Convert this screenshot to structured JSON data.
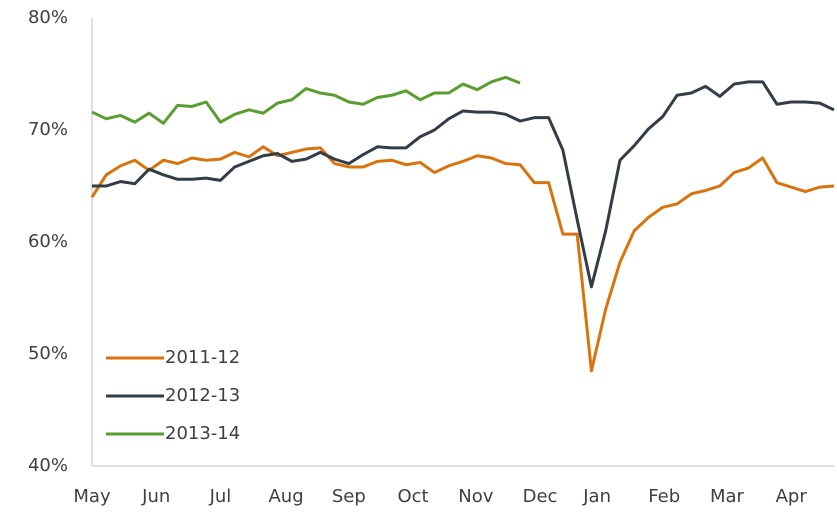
{
  "chart_data": {
    "type": "line",
    "x": [
      0,
      1,
      2,
      3,
      4,
      5,
      6,
      7,
      8,
      9,
      10,
      11,
      12,
      13,
      14,
      15,
      16,
      17,
      18,
      19,
      20,
      21,
      22,
      23,
      24,
      25,
      26,
      27,
      28,
      29,
      30,
      31,
      32,
      33,
      34,
      35,
      36,
      37,
      38,
      39,
      40,
      41,
      42,
      43,
      44,
      45,
      46,
      47,
      48,
      49,
      50,
      51,
      52
    ],
    "xlim": [
      0,
      52
    ],
    "xticks": [
      {
        "value": 0,
        "label": "May"
      },
      {
        "value": 4.5,
        "label": "Jun"
      },
      {
        "value": 9,
        "label": "Jul"
      },
      {
        "value": 13.6,
        "label": "Aug"
      },
      {
        "value": 18,
        "label": "Sep"
      },
      {
        "value": 22.5,
        "label": "Oct"
      },
      {
        "value": 26.9,
        "label": "Nov"
      },
      {
        "value": 31.4,
        "label": "Dec"
      },
      {
        "value": 35.4,
        "label": "Jan"
      },
      {
        "value": 40.1,
        "label": "Feb"
      },
      {
        "value": 44.5,
        "label": "Mar"
      },
      {
        "value": 49,
        "label": "Apr"
      }
    ],
    "ylim": [
      40,
      80
    ],
    "yticks": [
      {
        "value": 40,
        "label": "40%"
      },
      {
        "value": 50,
        "label": "50%"
      },
      {
        "value": 60,
        "label": "60%"
      },
      {
        "value": 70,
        "label": "70%"
      },
      {
        "value": 80,
        "label": "80%"
      }
    ],
    "grid": false,
    "legend": "lower left",
    "series": [
      {
        "name": "2011-12",
        "color": "#d9730d",
        "values": [
          64.0,
          66.0,
          66.8,
          67.3,
          66.4,
          67.3,
          67.0,
          67.5,
          67.3,
          67.4,
          68.0,
          67.6,
          68.5,
          67.7,
          68.0,
          68.3,
          68.4,
          67.0,
          66.7,
          66.7,
          67.2,
          67.3,
          66.9,
          67.1,
          66.2,
          66.8,
          67.2,
          67.7,
          67.5,
          67.0,
          66.9,
          65.3,
          65.3,
          60.7,
          60.7,
          48.5,
          54.0,
          58.2,
          61.0,
          62.2,
          63.1,
          63.4,
          64.3,
          64.6,
          65.0,
          66.2,
          66.6,
          67.5,
          65.3,
          64.9,
          64.5,
          64.9,
          65.0
        ]
      },
      {
        "name": "2012-13",
        "color": "#333d47",
        "values": [
          65.0,
          65.0,
          65.4,
          65.2,
          66.5,
          66.0,
          65.6,
          65.6,
          65.7,
          65.5,
          66.7,
          67.2,
          67.7,
          67.9,
          67.2,
          67.4,
          68.0,
          67.4,
          67.0,
          67.8,
          68.5,
          68.4,
          68.4,
          69.4,
          70.0,
          71.0,
          71.7,
          71.6,
          71.6,
          71.4,
          70.8,
          71.1,
          71.1,
          68.2,
          62.0,
          56.0,
          61.0,
          67.3,
          68.6,
          70.1,
          71.2,
          73.1,
          73.3,
          73.9,
          73.0,
          74.1,
          74.3,
          74.3,
          72.3,
          72.5,
          72.5,
          72.4,
          71.8
        ]
      },
      {
        "name": "2013-14",
        "color": "#5a9e32",
        "values": [
          71.6,
          71.0,
          71.3,
          70.7,
          71.5,
          70.6,
          72.2,
          72.1,
          72.5,
          70.7,
          71.4,
          71.8,
          71.5,
          72.4,
          72.7,
          73.7,
          73.3,
          73.1,
          72.5,
          72.3,
          72.9,
          73.1,
          73.5,
          72.7,
          73.3,
          73.3,
          74.1,
          73.6,
          74.3,
          74.7,
          74.2,
          null,
          null,
          null,
          null,
          null,
          null,
          null,
          null,
          null,
          null,
          null,
          null,
          null,
          null,
          null,
          null,
          null,
          null,
          null,
          null,
          null,
          null
        ]
      }
    ]
  }
}
